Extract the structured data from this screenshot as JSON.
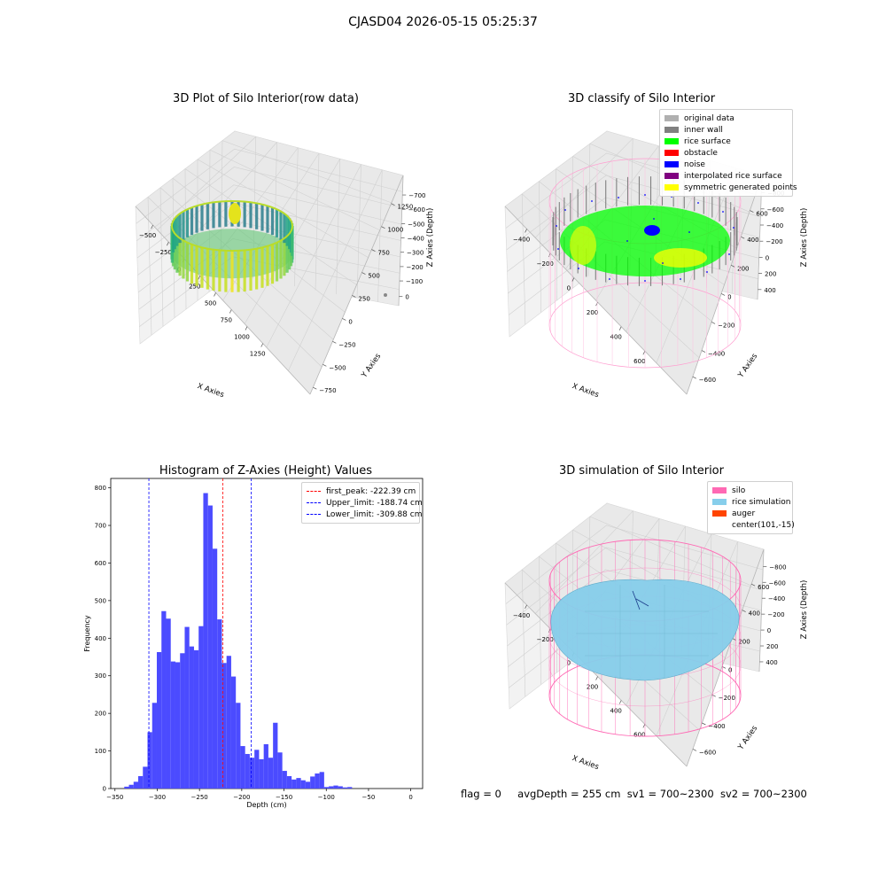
{
  "figure": {
    "suptitle": "CJASD04 2026-05-15 05:25:37",
    "status": {
      "flag": "flag = 0",
      "avg_depth": "avgDepth = 255 cm",
      "sv1": "sv1 = 700~2300",
      "sv2": "sv2 = 700~2300"
    }
  },
  "colors": {
    "original_data": "#b0b0b0",
    "inner_wall": "#808080",
    "rice_surface": "#00ff00",
    "obstacle": "#ff0000",
    "noise": "#0000ff",
    "interpolated_rice_surface": "#800080",
    "symmetric_generated_points": "#ffff00",
    "silo": "#ff69b4",
    "rice_simulation": "#87ceeb",
    "auger": "#ff4500",
    "histogram_bar": "#4b4bff"
  },
  "chart_data": [
    {
      "type": "scatter",
      "projection": "3d",
      "title": "3D Plot of Silo Interior(row data)",
      "xlabel": "X Axies",
      "ylabel": "Y Axies",
      "zlabel": "Z Axies (Depth)",
      "x_ticks": [
        "−500",
        "−250",
        "0",
        "250",
        "500",
        "750",
        "1000",
        "1250"
      ],
      "y_ticks": [
        "−750",
        "−500",
        "−250",
        "0",
        "250",
        "500",
        "750",
        "1000",
        "1250"
      ],
      "z_ticks": [
        "−700",
        "−600",
        "−500",
        "−400",
        "−300",
        "−200",
        "−100",
        "0"
      ],
      "xlim": [
        -600,
        1400
      ],
      "ylim": [
        -750,
        1300
      ],
      "zlim": [
        -750,
        0
      ],
      "colormap": "viridis"
    },
    {
      "type": "scatter",
      "projection": "3d",
      "title": "3D classify of Silo Interior",
      "xlabel": "X Axies",
      "ylabel": "Y Axies",
      "zlabel": "Z Axies (Depth)",
      "x_ticks": [
        "−400",
        "−200",
        "0",
        "200",
        "400",
        "600"
      ],
      "y_ticks": [
        "−600",
        "−400",
        "−200",
        "0",
        "200",
        "400",
        "600"
      ],
      "z_ticks": [
        "−800",
        "−600",
        "−400",
        "−200",
        "0",
        "200",
        "400"
      ],
      "xlim": [
        -500,
        700
      ],
      "ylim": [
        -650,
        650
      ],
      "zlim": [
        -900,
        420
      ],
      "legend": [
        "original data",
        "inner wall",
        "rice surface",
        "obstacle",
        "noise",
        "interpolated rice surface",
        "symmetric generated points"
      ],
      "legend_placement": "top-right"
    },
    {
      "type": "bar",
      "title": "Histogram of Z-Axies (Height) Values",
      "xlabel": "Depth (cm)",
      "ylabel": "Frequency",
      "x_ticks": [
        "−350",
        "−300",
        "−250",
        "−200",
        "−150",
        "−100",
        "−50",
        "0"
      ],
      "y_ticks": [
        "0",
        "100",
        "200",
        "300",
        "400",
        "500",
        "600",
        "700",
        "800"
      ],
      "xlim": [
        -355,
        14
      ],
      "ylim": [
        0,
        825
      ],
      "bin_start": -339,
      "bin_width": 5.5,
      "values": [
        5,
        10,
        18,
        33,
        58,
        150,
        228,
        363,
        472,
        452,
        338,
        336,
        360,
        430,
        378,
        368,
        432,
        786,
        753,
        638,
        450,
        334,
        353,
        298,
        228,
        113,
        92,
        82,
        103,
        78,
        118,
        82,
        175,
        96,
        47,
        33,
        24,
        28,
        22,
        18,
        32,
        40,
        44,
        4,
        6,
        8,
        6,
        3,
        4
      ],
      "reference_lines": [
        {
          "label": "first_peak: -222.39 cm",
          "x": -222.39,
          "color": "#ff0000"
        },
        {
          "label": "Upper_limit: -188.74 cm",
          "x": -188.74,
          "color": "#0000ff"
        },
        {
          "label": "Lower_limit: -309.88 cm",
          "x": -309.88,
          "color": "#0000ff"
        }
      ],
      "legend_placement": "top-right"
    },
    {
      "type": "area",
      "projection": "3d",
      "title": "3D simulation of Silo Interior",
      "xlabel": "X Axies",
      "ylabel": "Y Axies",
      "zlabel": "Z Axies (Depth)",
      "x_ticks": [
        "−400",
        "−200",
        "0",
        "200",
        "400",
        "600"
      ],
      "y_ticks": [
        "−600",
        "−400",
        "−200",
        "0",
        "200",
        "400",
        "600"
      ],
      "z_ticks": [
        "−800",
        "−600",
        "−400",
        "−200",
        "0",
        "200",
        "400"
      ],
      "xlim": [
        -500,
        700
      ],
      "ylim": [
        -650,
        650
      ],
      "zlim": [
        -900,
        420
      ],
      "legend": [
        "silo",
        "rice simulation",
        "auger",
        "center(101,-15)"
      ],
      "legend_placement": "top-right"
    }
  ]
}
